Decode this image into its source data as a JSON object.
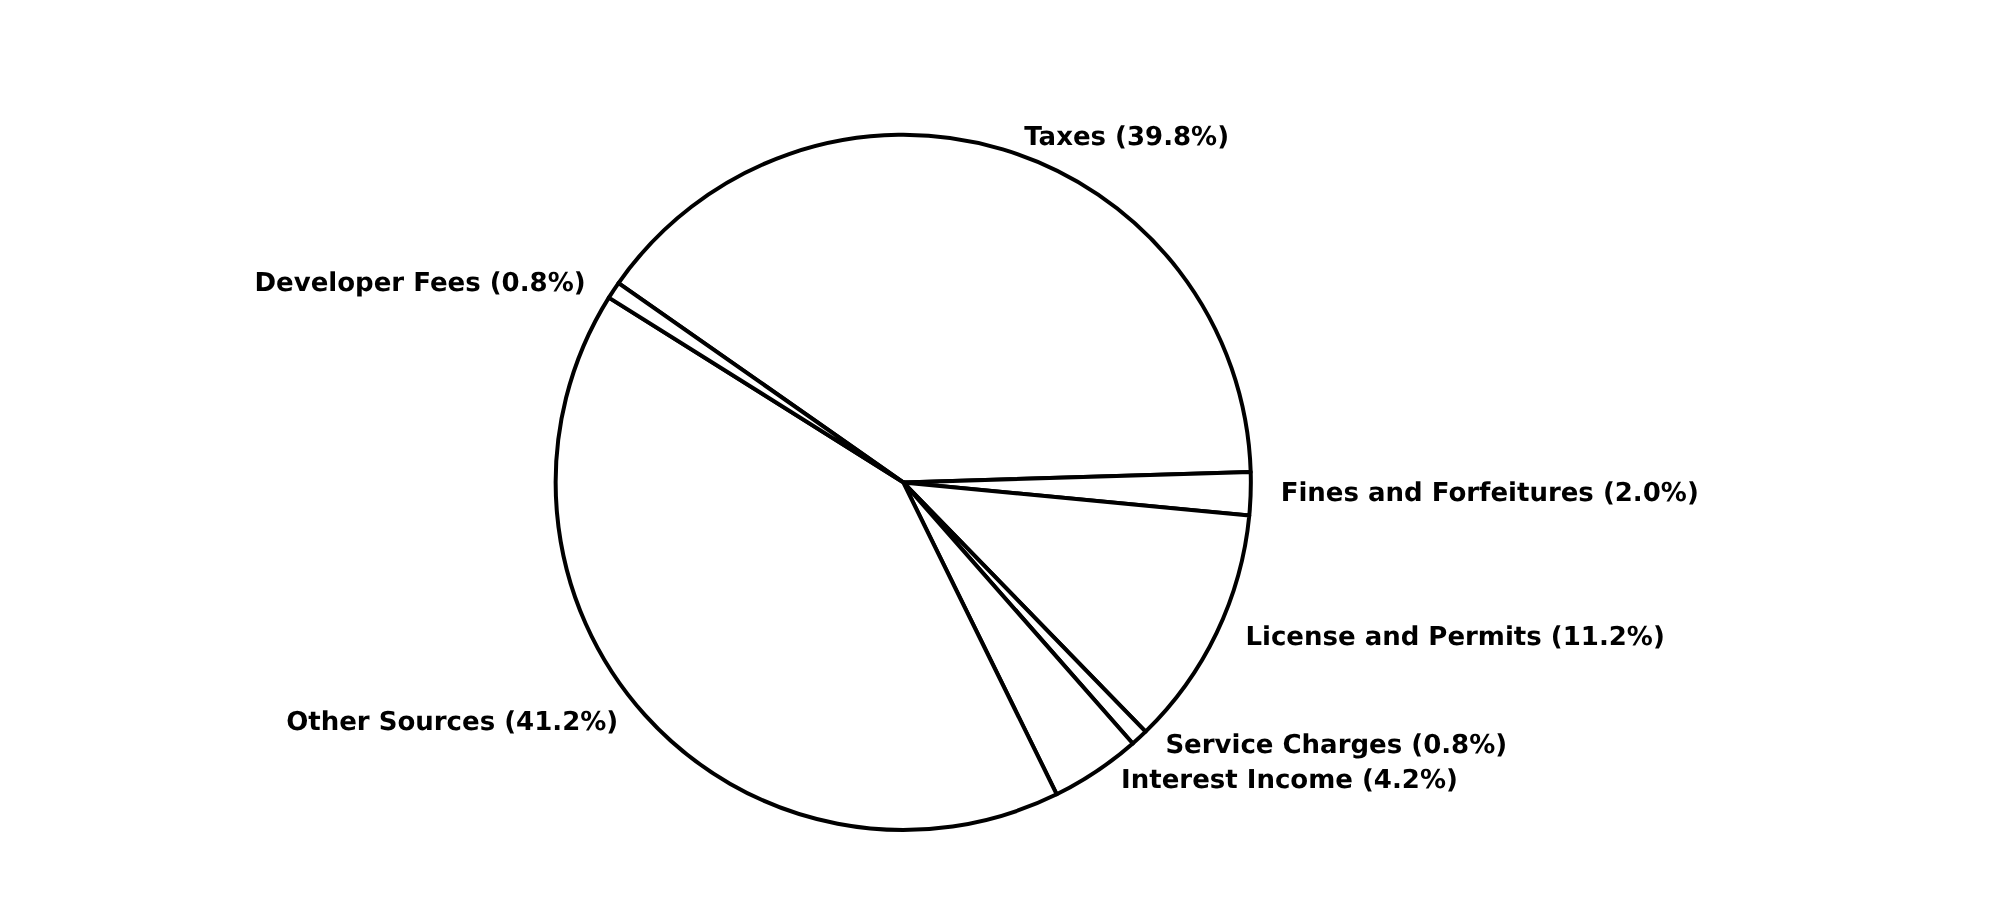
{
  "chart_data": {
    "type": "pie",
    "categories": [
      "Taxes",
      "Fines and Forfeitures",
      "License and Permits",
      "Service Charges",
      "Interest Income",
      "Other Sources",
      "Developer Fees"
    ],
    "values": [
      39.8,
      2.0,
      11.2,
      0.8,
      4.2,
      41.2,
      0.8
    ],
    "value_labels": [
      "(39.8%)",
      "(2.0%)",
      "(11.2%)",
      "(0.8%)",
      "(4.2%)",
      "(41.2%)",
      "(0.8%)"
    ],
    "colors": [
      "#ffffff",
      "#ffffff",
      "#ffffff",
      "#ffffff",
      "#ffffff",
      "#ffffff",
      "#ffffff"
    ],
    "legend": false
  }
}
